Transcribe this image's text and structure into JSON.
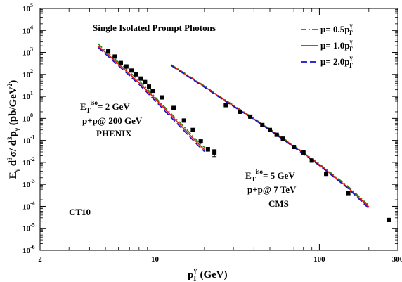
{
  "chart_data": {
    "type": "line",
    "title": "Single Isolated Prompt Photons",
    "xlabel": {
      "main": "p",
      "sup": "γ",
      "sub": "T",
      "units": " (GeV)"
    },
    "ylabel": "E_γ d³σ/ d³p_γ (pb/GeV²)",
    "x_scale": "log",
    "y_scale": "log",
    "xlim": [
      2,
      300
    ],
    "ylim": [
      1e-06,
      100000.0
    ],
    "x_ticks": [
      {
        "value": 2,
        "label": "2"
      },
      {
        "value": 10,
        "label": "10"
      },
      {
        "value": 100,
        "label": "100"
      },
      {
        "value": 300,
        "label": "300"
      }
    ],
    "y_ticks": [
      {
        "exp": -6,
        "label": "10",
        "sup": "-6"
      },
      {
        "exp": -5,
        "label": "10",
        "sup": "-5"
      },
      {
        "exp": -4,
        "label": "10",
        "sup": "-4"
      },
      {
        "exp": -3,
        "label": "10",
        "sup": "-3"
      },
      {
        "exp": -2,
        "label": "10",
        "sup": "-2"
      },
      {
        "exp": -1,
        "label": "10",
        "sup": "-1"
      },
      {
        "exp": 0,
        "label": "10",
        "sup": "0"
      },
      {
        "exp": 1,
        "label": "10",
        "sup": "1"
      },
      {
        "exp": 2,
        "label": "10",
        "sup": "2"
      },
      {
        "exp": 3,
        "label": "10",
        "sup": "3"
      },
      {
        "exp": 4,
        "label": "10",
        "sup": "4"
      },
      {
        "exp": 5,
        "label": "10",
        "sup": "5"
      }
    ],
    "legend": [
      {
        "mu": "μ= 0.5p",
        "sup": "γ",
        "sub": "T",
        "color": "#1a8a1a",
        "dash": "8,3,2,3"
      },
      {
        "mu": "μ= 1.0p",
        "sup": "γ",
        "sub": "T",
        "color": "#ee1111",
        "dash": ""
      },
      {
        "mu": "μ= 2.0p",
        "sup": "γ",
        "sub": "T",
        "color": "#1111cc",
        "dash": "9,4"
      }
    ],
    "annotations": {
      "phenix": {
        "et": "E",
        "et_sub": "T",
        "et_sup": "iso",
        "et_val": "= 2 GeV",
        "line2": "p+p@ 200 GeV",
        "line3": "PHENIX"
      },
      "cms": {
        "et": "E",
        "et_sub": "T",
        "et_sup": "iso",
        "et_val": "= 5 GeV",
        "line2": "p+p@ 7 TeV",
        "line3": "CMS"
      },
      "pdf": "CT10"
    },
    "series": [
      {
        "name": "PHENIX theory",
        "x": [
          4.5,
          5,
          6,
          7,
          8,
          10,
          12,
          15,
          18,
          20
        ],
        "curves": {
          "mu_0.5": [
            2500,
            1200,
            360,
            130,
            52,
            9.5,
            2.3,
            0.42,
            0.1,
            0.048
          ],
          "mu_1.0": [
            2000,
            1000,
            300,
            105,
            42,
            8,
            1.9,
            0.34,
            0.082,
            0.038
          ],
          "mu_2.0": [
            1700,
            850,
            250,
            88,
            35,
            6.5,
            1.55,
            0.28,
            0.066,
            0.031
          ]
        }
      },
      {
        "name": "CMS theory",
        "x": [
          12.5,
          15,
          20,
          25,
          30,
          40,
          50,
          60,
          80,
          100,
          150,
          200
        ],
        "curves": {
          "mu_0.5": [
            280,
            120,
            30,
            9.5,
            4.0,
            1.0,
            0.33,
            0.13,
            0.028,
            0.0085,
            0.0008,
            0.00011
          ],
          "mu_1.0": [
            270,
            112,
            28,
            9,
            3.7,
            0.95,
            0.31,
            0.12,
            0.026,
            0.0078,
            0.0007,
            9.5e-05
          ],
          "mu_2.0": [
            255,
            106,
            26,
            8.4,
            3.5,
            0.9,
            0.29,
            0.11,
            0.024,
            0.0072,
            0.00064,
            8e-05
          ]
        }
      }
    ],
    "data_points": [
      {
        "name": "PHENIX data",
        "points": [
          [
            5.2,
            1200,
            0.15
          ],
          [
            5.7,
            650,
            0.1
          ],
          [
            6.2,
            330,
            0.1
          ],
          [
            6.7,
            230,
            0.1
          ],
          [
            7.2,
            150,
            0.1
          ],
          [
            7.7,
            100,
            0.1
          ],
          [
            8.2,
            65,
            0.1
          ],
          [
            8.7,
            45,
            0.1
          ],
          [
            9.2,
            28,
            0.1
          ],
          [
            9.7,
            18,
            0.12
          ],
          [
            11,
            9,
            0.1
          ],
          [
            13,
            3.0,
            0.1
          ],
          [
            15,
            0.8,
            0.1
          ],
          [
            17,
            0.3,
            0.12
          ],
          [
            19,
            0.09,
            0.15
          ],
          [
            21,
            0.04,
            0.2
          ],
          [
            23,
            0.028,
            0.35
          ]
        ]
      },
      {
        "name": "CMS data",
        "points": [
          [
            27,
            4.0,
            0.1
          ],
          [
            33,
            2.0,
            0.08
          ],
          [
            38,
            1.2,
            0.08
          ],
          [
            45,
            0.5,
            0.08
          ],
          [
            50,
            0.3,
            0.08
          ],
          [
            55,
            0.18,
            0.08
          ],
          [
            60,
            0.12,
            0.08
          ],
          [
            70,
            0.05,
            0.08
          ],
          [
            80,
            0.028,
            0.08
          ],
          [
            90,
            0.012,
            0.08
          ],
          [
            110,
            0.003,
            0.08
          ],
          [
            150,
            0.0004,
            0.1
          ],
          [
            265,
            2.4e-05,
            0.1
          ]
        ]
      }
    ]
  }
}
